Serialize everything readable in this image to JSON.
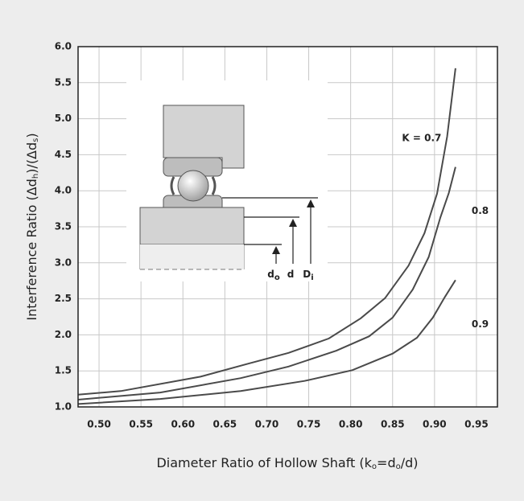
{
  "chart_data": {
    "type": "line",
    "y_label_parts": [
      "Interference Ratio (Δd",
      "h",
      ")/(Δd",
      "s",
      ")"
    ],
    "x_label_parts": [
      "Diameter Ratio of Hollow Shaft (k",
      "o",
      "=d",
      "o",
      "/d)"
    ],
    "xlim": [
      0.475,
      0.975
    ],
    "xticks": [
      {
        "value": 0.5,
        "label": "0.50"
      },
      0.55,
      {
        "value": 0.6,
        "label": "0.60"
      },
      0.65,
      {
        "value": 0.7,
        "label": "0.70"
      },
      0.75,
      {
        "value": 0.8,
        "label": "0.80"
      },
      0.85,
      {
        "value": 0.9,
        "label": "0.90"
      },
      0.95
    ],
    "ylim": [
      1,
      6
    ],
    "yticks": [
      {
        "value": 1,
        "label": "1.0"
      },
      1.5,
      {
        "value": 2,
        "label": "2.0"
      },
      2.5,
      {
        "value": 3,
        "label": "3.0"
      },
      3.5,
      {
        "value": 4,
        "label": "4.0"
      },
      4.5,
      {
        "value": 5,
        "label": "5.0"
      },
      5.5,
      {
        "value": 6,
        "label": "6.0"
      }
    ],
    "grid": true,
    "series": [
      {
        "name": "K = 0.7",
        "color": "#4a4a4a",
        "x": [
          0.475,
          0.526,
          0.621,
          0.678,
          0.726,
          0.774,
          0.812,
          0.841,
          0.869,
          0.888,
          0.903,
          0.915,
          0.925
        ],
        "values": [
          1.17,
          1.22,
          1.42,
          1.6,
          1.75,
          1.95,
          2.23,
          2.51,
          2.96,
          3.41,
          3.96,
          4.75,
          5.7
        ]
      },
      {
        "name": "0.8",
        "color": "#4a4a4a",
        "x": [
          0.475,
          0.573,
          0.669,
          0.726,
          0.783,
          0.822,
          0.85,
          0.874,
          0.893,
          0.907,
          0.917,
          0.925
        ],
        "values": [
          1.1,
          1.2,
          1.4,
          1.56,
          1.78,
          1.98,
          2.24,
          2.63,
          3.08,
          3.63,
          3.97,
          4.33
        ]
      },
      {
        "name": "0.9",
        "color": "#4a4a4a",
        "x": [
          0.475,
          0.573,
          0.669,
          0.745,
          0.802,
          0.85,
          0.879,
          0.898,
          0.912,
          0.925
        ],
        "values": [
          1.04,
          1.11,
          1.22,
          1.36,
          1.51,
          1.74,
          1.96,
          2.24,
          2.52,
          2.76
        ]
      }
    ],
    "inset_labels": [
      {
        "base": "d",
        "sub": "o"
      },
      {
        "base": "d"
      },
      {
        "base": "D",
        "sub": "i"
      }
    ]
  }
}
